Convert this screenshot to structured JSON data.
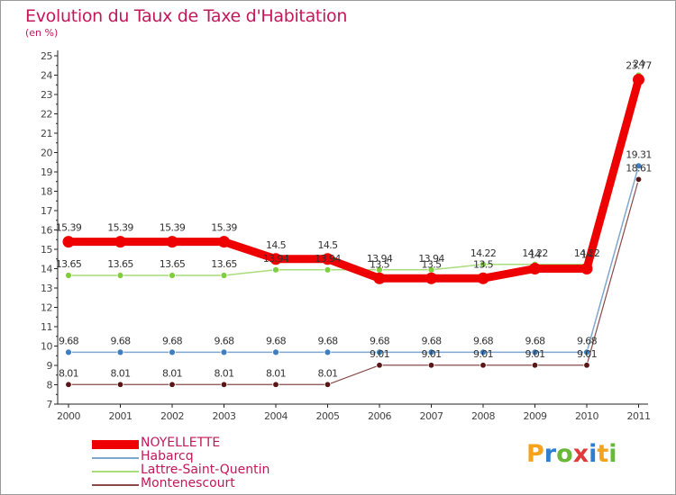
{
  "chart_data": {
    "type": "line",
    "title": "Evolution du Taux de Taxe d'Habitation",
    "subtitle": "(en %)",
    "x": [
      "2000",
      "2001",
      "2002",
      "2003",
      "2004",
      "2005",
      "2006",
      "2007",
      "2008",
      "2009",
      "2010",
      "2011"
    ],
    "ylim": [
      7,
      25
    ],
    "yticks": [
      "7",
      "8",
      "9",
      "10",
      "11",
      "12",
      "13",
      "14",
      "15",
      "16",
      "17",
      "18",
      "19",
      "20",
      "21",
      "22",
      "23",
      "24",
      "25"
    ],
    "grid": false,
    "legend_position": "bottom-left",
    "series": [
      {
        "name": "NOYELLETTE",
        "color": "#ee0000",
        "values": [
          15.39,
          15.39,
          15.39,
          15.39,
          14.5,
          14.5,
          13.5,
          13.5,
          13.5,
          14,
          14,
          23.77
        ],
        "labels": [
          "15.39",
          "15.39",
          "15.39",
          "15.39",
          "14.5",
          "14.5",
          "13.5",
          "13.5",
          "13.5",
          "14",
          "14",
          "23.77"
        ]
      },
      {
        "name": "Habarcq",
        "color": "#7fa6cf",
        "values": [
          9.68,
          9.68,
          9.68,
          9.68,
          9.68,
          9.68,
          9.68,
          9.68,
          9.68,
          9.68,
          9.68,
          19.31
        ],
        "labels": [
          "9.68",
          "9.68",
          "9.68",
          "9.68",
          "9.68",
          "9.68",
          "9.68",
          "9.68",
          "9.68",
          "9.68",
          "9.68",
          "19.31"
        ]
      },
      {
        "name": "Lattre-Saint-Quentin",
        "color": "#a8dc7c",
        "values": [
          13.65,
          13.65,
          13.65,
          13.65,
          13.94,
          13.94,
          13.94,
          13.94,
          14.22,
          14.22,
          14.22,
          24
        ],
        "labels": [
          "13.65",
          "13.65",
          "13.65",
          "13.65",
          "13.94",
          "13.94",
          "13.94",
          "13.94",
          "14.22",
          "14.22",
          "14.22",
          "24"
        ]
      },
      {
        "name": "Montenescourt",
        "color": "#8a4a4a",
        "values": [
          8.01,
          8.01,
          8.01,
          8.01,
          8.01,
          8.01,
          9.01,
          9.01,
          9.01,
          9.01,
          9.01,
          18.61
        ],
        "labels": [
          "8.01",
          "8.01",
          "8.01",
          "8.01",
          "8.01",
          "8.01",
          "9.01",
          "9.01",
          "9.01",
          "9.01",
          "9.01",
          "18.61"
        ]
      }
    ]
  },
  "branding": {
    "logo_letters": [
      "P",
      "r",
      "o",
      "x",
      "i",
      "t",
      "i"
    ]
  }
}
